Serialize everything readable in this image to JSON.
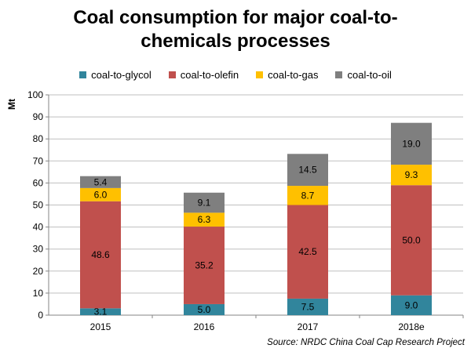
{
  "title_line1": "Coal consumption for major coal-to-",
  "title_line2": "chemicals processes",
  "source": "Source: NRDC China Coal Cap Research Project",
  "chart_data": {
    "type": "bar",
    "stacked": true,
    "title": "Coal consumption for major coal-to-chemicals processes",
    "ylabel": "Mt",
    "xlabel": "",
    "ylim": [
      0,
      100
    ],
    "yticks": [
      0,
      10,
      20,
      30,
      40,
      50,
      60,
      70,
      80,
      90,
      100
    ],
    "grid": true,
    "legend_position": "top",
    "categories": [
      "2015",
      "2016",
      "2017",
      "2018e"
    ],
    "series": [
      {
        "name": "coal-to-glycol",
        "color": "#31859c",
        "values": [
          3.1,
          5.0,
          7.5,
          9.0
        ],
        "labels": [
          "3.1",
          "5.0",
          "7.5",
          "9.0"
        ]
      },
      {
        "name": "coal-to-olefin",
        "color": "#c0504d",
        "values": [
          48.6,
          35.2,
          42.5,
          50.0
        ],
        "labels": [
          "48.6",
          "35.2",
          "42.5",
          "50.0"
        ]
      },
      {
        "name": "coal-to-gas",
        "color": "#ffc000",
        "values": [
          6.0,
          6.3,
          8.7,
          9.3
        ],
        "labels": [
          "6.0",
          "6.3",
          "8.7",
          "9.3"
        ]
      },
      {
        "name": "coal-to-oil",
        "color": "#7f7f7f",
        "values": [
          5.4,
          9.1,
          14.5,
          19.0
        ],
        "labels": [
          "5.4",
          "9.1",
          "14.5",
          "19.0"
        ]
      }
    ]
  }
}
